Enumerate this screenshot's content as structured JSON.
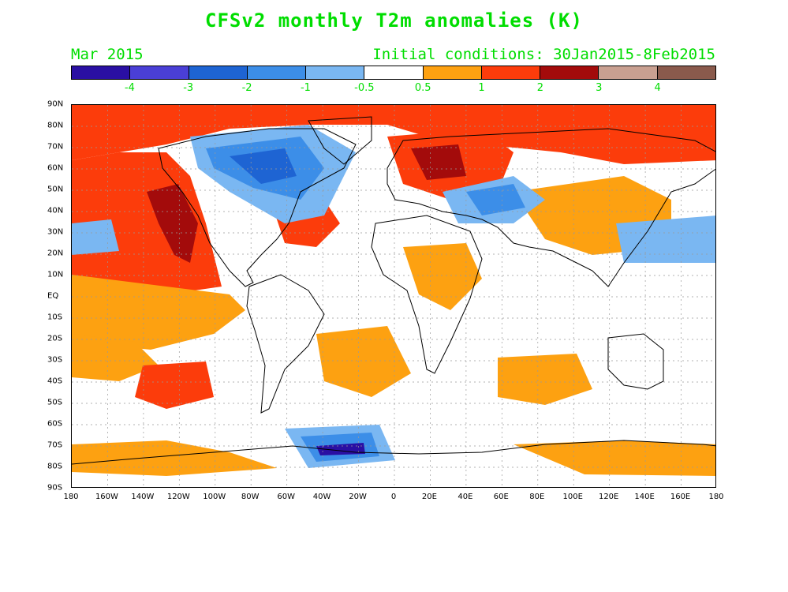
{
  "title": "CFSv2 monthly T2m anomalies (K)",
  "forecast_month": "Mar 2015",
  "initial_conditions": "Initial conditions: 30Jan2015-8Feb2015",
  "colorbar": {
    "colors": [
      "#2a0fa3",
      "#4a3fd6",
      "#1e64d3",
      "#3c8ee8",
      "#7ab7f2",
      "#ffffff",
      "#fda111",
      "#fc3c0b",
      "#a30b0b",
      "#c9a091",
      "#8a5a4c"
    ],
    "labels": [
      "-4",
      "-3",
      "-2",
      "-1",
      "-0.5",
      "0.5",
      "1",
      "2",
      "3",
      "4"
    ]
  },
  "map": {
    "lat_labels": [
      "90N",
      "80N",
      "70N",
      "60N",
      "50N",
      "40N",
      "30N",
      "20N",
      "10N",
      "EQ",
      "10S",
      "20S",
      "30S",
      "40S",
      "50S",
      "60S",
      "70S",
      "80S",
      "90S"
    ],
    "lon_labels": [
      "180",
      "160W",
      "140W",
      "120W",
      "100W",
      "80W",
      "60W",
      "40W",
      "20W",
      "0",
      "20E",
      "40E",
      "60E",
      "80E",
      "100E",
      "120E",
      "140E",
      "160E",
      "180"
    ]
  },
  "chart_data": {
    "type": "heatmap",
    "title": "CFSv2 monthly T2m anomalies (K)",
    "variable": "T2m anomaly",
    "units": "K",
    "valid_month": "Mar 2015",
    "initial_conditions": "30Jan2015-8Feb2015",
    "levels": [
      -4,
      -3,
      -2,
      -1,
      -0.5,
      0.5,
      1,
      2,
      3,
      4
    ],
    "xlim": [
      -180,
      180
    ],
    "ylim": [
      -90,
      90
    ],
    "grid": true
  }
}
